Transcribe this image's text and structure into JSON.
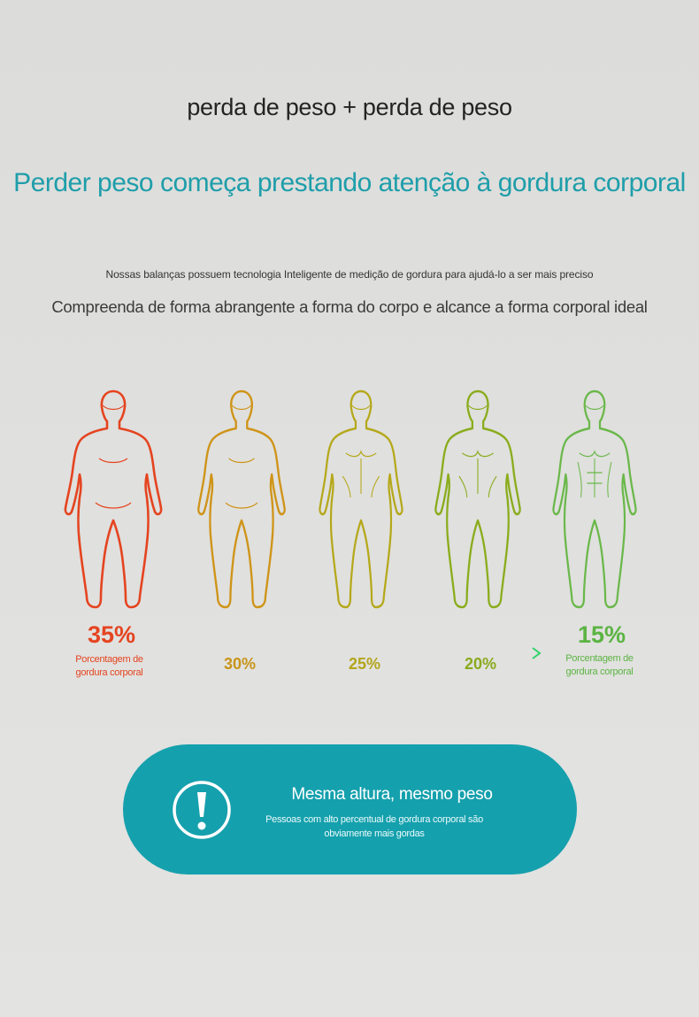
{
  "header": {
    "top_title": "perda de peso + perda de peso",
    "main_title": "Perder peso começa prestando atenção à gordura corporal",
    "subtitle_small": "Nossas balanças possuem tecnologia Inteligente de medição de gordura para ajudá-lo a ser mais preciso",
    "subtitle_mid": "Compreenda de forma abrangente a forma do corpo e alcance a forma corporal ideal"
  },
  "scale": {
    "start": {
      "value": "35%",
      "label": "Porcentagem de gordura corporal",
      "color": "#e54420"
    },
    "steps": [
      {
        "value": "30%",
        "color": "#c8951a"
      },
      {
        "value": "25%",
        "color": "#b3a51c"
      },
      {
        "value": "20%",
        "color": "#8aaa1c"
      }
    ],
    "end": {
      "value": "15%",
      "label": "Porcentagem de gordura corporal",
      "color": "#5cb443"
    },
    "figure_colors": [
      "#e54420",
      "#cf9418",
      "#b5a81a",
      "#8aac1c",
      "#6ab84a"
    ],
    "figure_fat_levels": [
      35,
      30,
      25,
      20,
      15
    ]
  },
  "banner": {
    "icon": "exclamation-circle-icon",
    "title": "Mesma altura, mesmo peso",
    "text": "Pessoas com alto percentual de gordura corporal são obviamente mais gordas",
    "color": "#15a0ad"
  }
}
